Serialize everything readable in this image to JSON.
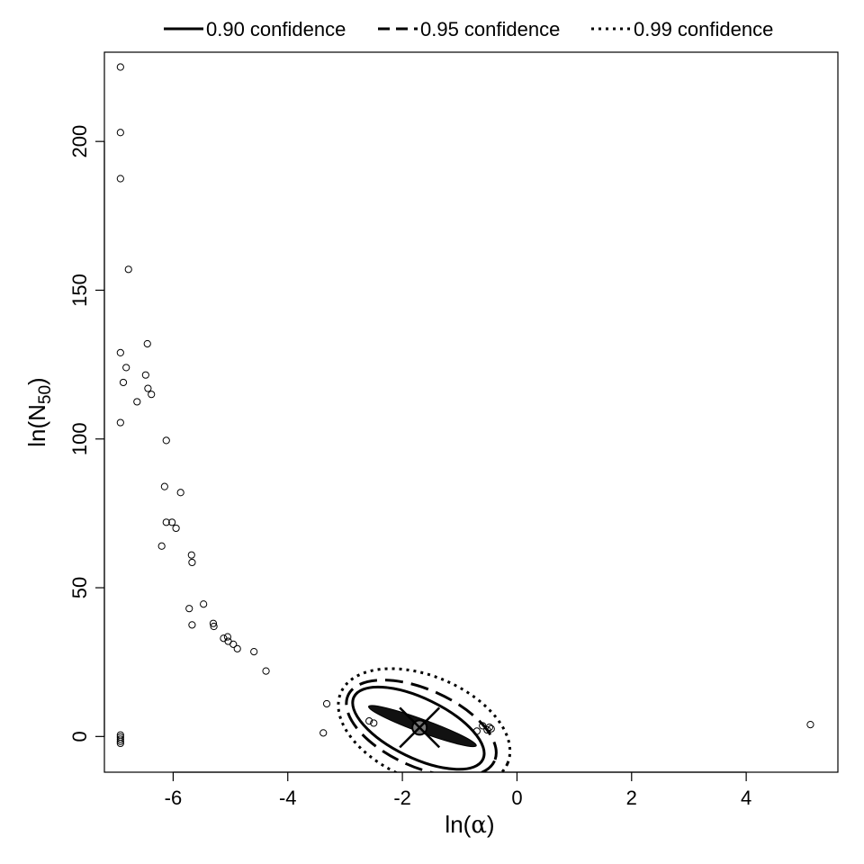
{
  "chart_data": {
    "type": "scatter",
    "xlabel_text": "ln(",
    "xlabel_symbol": "α",
    "xlabel_close": ")",
    "ylabel_text": "ln(N",
    "ylabel_sub": "50",
    "ylabel_close": ")",
    "xlim": [
      -7.2,
      5.6
    ],
    "ylim": [
      -12,
      230
    ],
    "x_ticks": [
      -6,
      -4,
      -2,
      0,
      2,
      4
    ],
    "x_tick_labels": [
      "-6",
      "-4",
      "-2",
      "0",
      "2",
      "4"
    ],
    "y_ticks": [
      0,
      50,
      100,
      150,
      200
    ],
    "y_tick_labels": [
      "0",
      "50",
      "100",
      "150",
      "200"
    ],
    "legend_position": "top",
    "legend": [
      {
        "label": "0.90 confidence",
        "style": "solid"
      },
      {
        "label": "0.95 confidence",
        "style": "dashed"
      },
      {
        "label": "0.99 confidence",
        "style": "dotted"
      }
    ],
    "mle": {
      "x": -1.7,
      "y": 3.0
    },
    "ellipses": [
      {
        "level": 0.9,
        "style": "solid",
        "cx": -1.72,
        "cy": 2.8,
        "rx": 1.25,
        "ry": 10.0,
        "rotation": 0.45
      },
      {
        "level": 0.95,
        "style": "dashed",
        "cx": -1.67,
        "cy": 2.8,
        "rx": 1.4,
        "ry": 13.0,
        "rotation": 0.42
      },
      {
        "level": 0.99,
        "style": "dotted",
        "cx": -1.62,
        "cy": 2.8,
        "rx": 1.58,
        "ry": 17.5,
        "rotation": 0.4
      },
      {
        "level": "cloud",
        "style": "filled",
        "cx": -1.65,
        "cy": 3.5,
        "rx": 1.0,
        "ry": 2.2,
        "rotation": 0.35
      }
    ],
    "points": [
      [
        -6.92,
        225
      ],
      [
        -6.92,
        203
      ],
      [
        -6.92,
        187.5
      ],
      [
        -6.78,
        157
      ],
      [
        -6.45,
        132
      ],
      [
        -6.92,
        129
      ],
      [
        -6.82,
        124
      ],
      [
        -6.48,
        121.5
      ],
      [
        -6.87,
        119
      ],
      [
        -6.44,
        117
      ],
      [
        -6.38,
        115
      ],
      [
        -6.63,
        112.5
      ],
      [
        -6.92,
        105.5
      ],
      [
        -6.12,
        99.5
      ],
      [
        -6.15,
        84
      ],
      [
        -5.87,
        82
      ],
      [
        -6.12,
        72
      ],
      [
        -6.02,
        72
      ],
      [
        -5.95,
        70
      ],
      [
        -6.2,
        64
      ],
      [
        -5.68,
        61
      ],
      [
        -5.67,
        58.5
      ],
      [
        -5.47,
        44.5
      ],
      [
        -5.72,
        43
      ],
      [
        -5.67,
        37.5
      ],
      [
        -5.3,
        38
      ],
      [
        -5.29,
        37
      ],
      [
        -5.12,
        33
      ],
      [
        -5.05,
        33.5
      ],
      [
        -5.04,
        32
      ],
      [
        -4.95,
        31
      ],
      [
        -4.88,
        29.5
      ],
      [
        -4.59,
        28.5
      ],
      [
        -4.38,
        22
      ],
      [
        -3.32,
        11
      ],
      [
        -3.38,
        1.2
      ],
      [
        5.12,
        4
      ],
      [
        -6.92,
        -0.2
      ],
      [
        -6.92,
        -0.9
      ],
      [
        -6.92,
        -1.6
      ],
      [
        -6.92,
        -2.3
      ],
      [
        -6.92,
        0.5
      ],
      [
        -2.58,
        5.2
      ],
      [
        -2.5,
        4.5
      ],
      [
        -0.52,
        2.2
      ],
      [
        -0.48,
        3.1
      ],
      [
        -0.45,
        2.6
      ],
      [
        -0.6,
        3.6
      ],
      [
        -0.7,
        1.8
      ]
    ]
  }
}
